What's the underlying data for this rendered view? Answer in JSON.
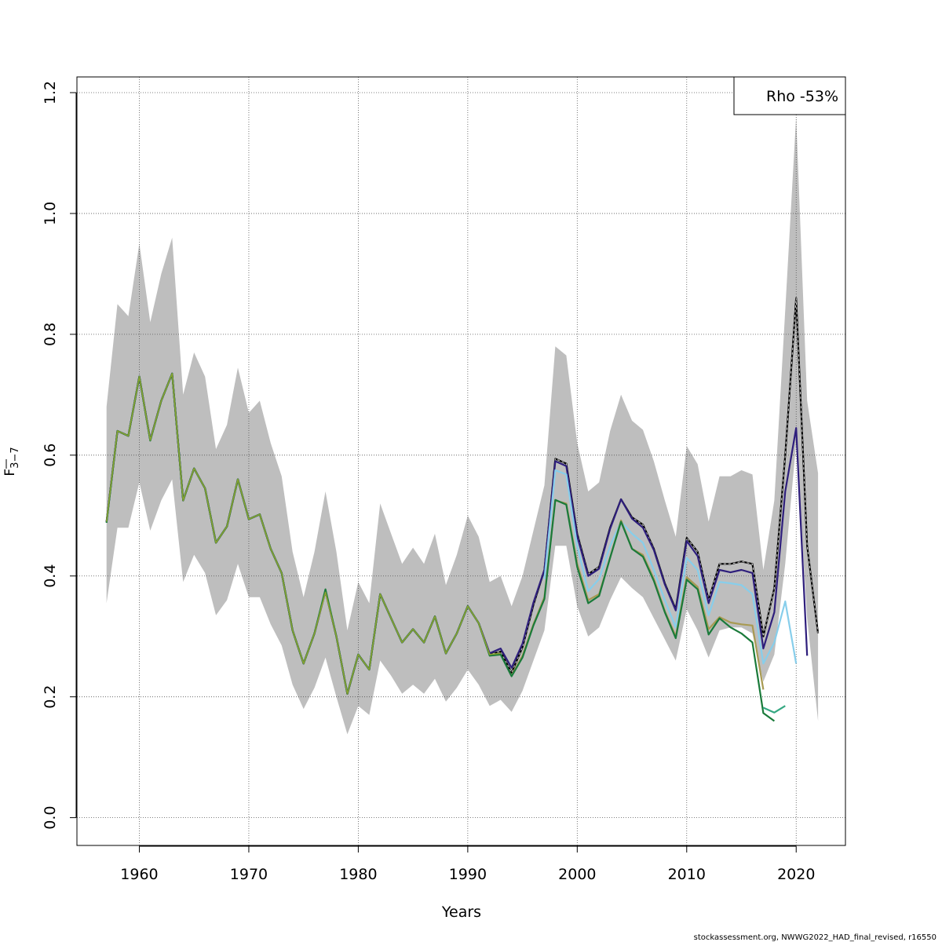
{
  "footer": "stockassessment.org, NWWG2022_HAD_final_revised, r16550",
  "legend": {
    "text": "Rho -53%"
  },
  "colors": {
    "band": "#bebebe",
    "grid": "#555555",
    "main": "#000000",
    "peel1": "#2e1e7c",
    "peel2": "#87ceeb",
    "peel3": "#a89a52",
    "peel4": "#1a7a3a",
    "peel5": "#35a882",
    "olive_overlay": "#8aa332"
  },
  "chart_data": {
    "type": "line",
    "xlabel": "Years",
    "ylabel": "F̅ 3−7",
    "ylabel_main": "F",
    "ylabel_sub": "3−7",
    "xlim": [
      1954.3,
      2024.5
    ],
    "ylim": [
      -0.046,
      1.226
    ],
    "xticks": [
      1960,
      1970,
      1980,
      1990,
      2000,
      2010,
      2020
    ],
    "yticks": [
      0.0,
      0.2,
      0.4,
      0.6,
      0.8,
      1.0,
      1.2
    ],
    "ytick_labels": [
      "0.0",
      "0.2",
      "0.4",
      "0.6",
      "0.8",
      "1.0",
      "1.2"
    ],
    "grid": true,
    "legend_position": "top-right",
    "confidence_band": {
      "x": [
        1957,
        1958,
        1959,
        1960,
        1961,
        1962,
        1963,
        1964,
        1965,
        1966,
        1967,
        1968,
        1969,
        1970,
        1971,
        1972,
        1973,
        1974,
        1975,
        1976,
        1977,
        1978,
        1979,
        1980,
        1981,
        1982,
        1983,
        1984,
        1985,
        1986,
        1987,
        1988,
        1989,
        1990,
        1991,
        1992,
        1993,
        1994,
        1995,
        1996,
        1997,
        1998,
        1999,
        2000,
        2001,
        2002,
        2003,
        2004,
        2005,
        2006,
        2007,
        2008,
        2009,
        2010,
        2011,
        2012,
        2013,
        2014,
        2015,
        2016,
        2017,
        2018,
        2019,
        2020,
        2021,
        2022
      ],
      "upper": [
        0.68,
        0.85,
        0.83,
        0.95,
        0.82,
        0.9,
        0.96,
        0.7,
        0.77,
        0.73,
        0.61,
        0.65,
        0.745,
        0.67,
        0.69,
        0.62,
        0.565,
        0.44,
        0.365,
        0.44,
        0.54,
        0.44,
        0.31,
        0.39,
        0.355,
        0.52,
        0.47,
        0.42,
        0.447,
        0.42,
        0.47,
        0.385,
        0.435,
        0.5,
        0.465,
        0.39,
        0.4,
        0.35,
        0.4,
        0.475,
        0.55,
        0.78,
        0.765,
        0.62,
        0.54,
        0.555,
        0.64,
        0.7,
        0.657,
        0.642,
        0.59,
        0.525,
        0.465,
        0.615,
        0.585,
        0.49,
        0.565,
        0.565,
        0.575,
        0.568,
        0.41,
        0.525,
        0.84,
        1.16,
        0.69,
        0.57
      ],
      "lower": [
        0.355,
        0.48,
        0.48,
        0.555,
        0.475,
        0.525,
        0.56,
        0.39,
        0.435,
        0.405,
        0.335,
        0.36,
        0.42,
        0.365,
        0.365,
        0.32,
        0.285,
        0.22,
        0.18,
        0.215,
        0.265,
        0.2,
        0.138,
        0.185,
        0.17,
        0.26,
        0.235,
        0.205,
        0.22,
        0.205,
        0.23,
        0.192,
        0.215,
        0.245,
        0.22,
        0.185,
        0.195,
        0.175,
        0.21,
        0.26,
        0.31,
        0.45,
        0.45,
        0.35,
        0.3,
        0.315,
        0.36,
        0.398,
        0.38,
        0.365,
        0.33,
        0.295,
        0.26,
        0.345,
        0.31,
        0.265,
        0.31,
        0.315,
        0.315,
        0.305,
        0.225,
        0.27,
        0.42,
        0.62,
        0.33,
        0.16
      ]
    },
    "series": [
      {
        "color_key": "main",
        "dashed": true,
        "x": [
          1957,
          1958,
          1959,
          1960,
          1961,
          1962,
          1963,
          1964,
          1965,
          1966,
          1967,
          1968,
          1969,
          1970,
          1971,
          1972,
          1973,
          1974,
          1975,
          1976,
          1977,
          1978,
          1979,
          1980,
          1981,
          1982,
          1983,
          1984,
          1985,
          1986,
          1987,
          1988,
          1989,
          1990,
          1991,
          1992,
          1993,
          1994,
          1995,
          1996,
          1997,
          1998,
          1999,
          2000,
          2001,
          2002,
          2003,
          2004,
          2005,
          2006,
          2007,
          2008,
          2009,
          2010,
          2011,
          2012,
          2013,
          2014,
          2015,
          2016,
          2017,
          2018,
          2019,
          2020,
          2021,
          2022
        ],
        "values": [
          0.49,
          0.64,
          0.632,
          0.73,
          0.625,
          0.69,
          0.735,
          0.525,
          0.578,
          0.545,
          0.455,
          0.482,
          0.56,
          0.494,
          0.502,
          0.445,
          0.405,
          0.31,
          0.255,
          0.305,
          0.375,
          0.3,
          0.205,
          0.27,
          0.245,
          0.37,
          0.33,
          0.29,
          0.312,
          0.29,
          0.333,
          0.272,
          0.305,
          0.35,
          0.322,
          0.27,
          0.275,
          0.24,
          0.282,
          0.352,
          0.41,
          0.594,
          0.586,
          0.47,
          0.403,
          0.415,
          0.48,
          0.527,
          0.497,
          0.485,
          0.445,
          0.388,
          0.345,
          0.463,
          0.44,
          0.36,
          0.42,
          0.42,
          0.424,
          0.42,
          0.3,
          0.38,
          0.6,
          0.86,
          0.45,
          0.305
        ]
      },
      {
        "color_key": "peel1",
        "dashed": false,
        "x": [
          1957,
          1958,
          1959,
          1960,
          1961,
          1962,
          1963,
          1964,
          1965,
          1966,
          1967,
          1968,
          1969,
          1970,
          1971,
          1972,
          1973,
          1974,
          1975,
          1976,
          1977,
          1978,
          1979,
          1980,
          1981,
          1982,
          1983,
          1984,
          1985,
          1986,
          1987,
          1988,
          1989,
          1990,
          1991,
          1992,
          1993,
          1994,
          1995,
          1996,
          1997,
          1998,
          1999,
          2000,
          2001,
          2002,
          2003,
          2004,
          2005,
          2006,
          2007,
          2008,
          2009,
          2010,
          2011,
          2012,
          2013,
          2014,
          2015,
          2016,
          2017,
          2018,
          2019,
          2020,
          2021
        ],
        "values": [
          0.489,
          0.64,
          0.632,
          0.73,
          0.625,
          0.69,
          0.735,
          0.525,
          0.578,
          0.545,
          0.455,
          0.482,
          0.56,
          0.494,
          0.502,
          0.445,
          0.405,
          0.31,
          0.255,
          0.305,
          0.375,
          0.3,
          0.205,
          0.27,
          0.245,
          0.37,
          0.33,
          0.29,
          0.312,
          0.29,
          0.333,
          0.272,
          0.305,
          0.35,
          0.322,
          0.272,
          0.28,
          0.248,
          0.288,
          0.356,
          0.41,
          0.59,
          0.582,
          0.466,
          0.4,
          0.412,
          0.478,
          0.527,
          0.495,
          0.48,
          0.443,
          0.386,
          0.343,
          0.458,
          0.433,
          0.355,
          0.41,
          0.406,
          0.41,
          0.405,
          0.28,
          0.34,
          0.54,
          0.645,
          0.268
        ]
      },
      {
        "color_key": "peel2",
        "dashed": false,
        "x": [
          1997,
          1998,
          1999,
          2000,
          2001,
          2002,
          2003,
          2004,
          2005,
          2006,
          2007,
          2008,
          2009,
          2010,
          2011,
          2012,
          2013,
          2014,
          2015,
          2016,
          2017,
          2018,
          2019,
          2020
        ],
        "values": [
          0.395,
          0.575,
          0.568,
          0.45,
          0.375,
          0.395,
          0.45,
          0.49,
          0.47,
          0.455,
          0.41,
          0.36,
          0.315,
          0.43,
          0.41,
          0.335,
          0.39,
          0.388,
          0.385,
          0.37,
          0.255,
          0.29,
          0.358,
          0.255
        ]
      },
      {
        "color_key": "peel3",
        "dashed": false,
        "x": [
          1994,
          1995,
          1996,
          1997,
          1998,
          1999,
          2000,
          2001,
          2002,
          2003,
          2004,
          2005,
          2006,
          2007,
          2008,
          2009,
          2010,
          2011,
          2012,
          2013,
          2014,
          2015,
          2016,
          2017
        ],
        "values": [
          0.235,
          0.268,
          0.32,
          0.365,
          0.525,
          0.52,
          0.42,
          0.36,
          0.37,
          0.43,
          0.492,
          0.445,
          0.435,
          0.395,
          0.342,
          0.3,
          0.398,
          0.382,
          0.312,
          0.332,
          0.323,
          0.32,
          0.318,
          0.212
        ]
      },
      {
        "color_key": "peel4",
        "dashed": false,
        "x": [
          1957,
          1958,
          1959,
          1960,
          1961,
          1962,
          1963,
          1964,
          1965,
          1966,
          1967,
          1968,
          1969,
          1970,
          1971,
          1972,
          1973,
          1974,
          1975,
          1976,
          1977,
          1978,
          1979,
          1980,
          1981,
          1982,
          1983,
          1984,
          1985,
          1986,
          1987,
          1988,
          1989,
          1990,
          1991,
          1992,
          1993,
          1994,
          1995,
          1996,
          1997,
          1998,
          1999,
          2000,
          2001,
          2002,
          2003,
          2004,
          2005,
          2006,
          2007,
          2008,
          2009,
          2010,
          2011,
          2012,
          2013,
          2014,
          2015,
          2016,
          2017,
          2018
        ],
        "values": [
          0.488,
          0.64,
          0.632,
          0.73,
          0.624,
          0.69,
          0.735,
          0.525,
          0.578,
          0.545,
          0.455,
          0.482,
          0.56,
          0.494,
          0.502,
          0.445,
          0.405,
          0.31,
          0.255,
          0.305,
          0.378,
          0.3,
          0.205,
          0.27,
          0.245,
          0.37,
          0.33,
          0.29,
          0.312,
          0.29,
          0.333,
          0.272,
          0.305,
          0.35,
          0.322,
          0.268,
          0.27,
          0.234,
          0.265,
          0.318,
          0.362,
          0.526,
          0.518,
          0.415,
          0.355,
          0.367,
          0.43,
          0.49,
          0.445,
          0.432,
          0.392,
          0.34,
          0.297,
          0.394,
          0.378,
          0.303,
          0.33,
          0.315,
          0.305,
          0.29,
          0.173,
          0.16
        ]
      },
      {
        "color_key": "peel5",
        "dashed": false,
        "x": [
          2017,
          2018,
          2019
        ],
        "values": [
          0.182,
          0.174,
          0.185
        ]
      },
      {
        "color_key": "olive_overlay",
        "dashed": false,
        "x": [
          1957,
          1958,
          1959,
          1960,
          1961,
          1962,
          1963,
          1964,
          1965,
          1966,
          1967,
          1968,
          1969,
          1970,
          1971,
          1972,
          1973,
          1974,
          1975,
          1976,
          1977,
          1978,
          1979,
          1980,
          1981,
          1982,
          1983,
          1984,
          1985,
          1986,
          1987,
          1988,
          1989,
          1990,
          1991,
          1992,
          1993
        ],
        "values": [
          0.49,
          0.64,
          0.632,
          0.73,
          0.625,
          0.69,
          0.735,
          0.525,
          0.578,
          0.545,
          0.455,
          0.482,
          0.56,
          0.494,
          0.502,
          0.445,
          0.405,
          0.31,
          0.255,
          0.305,
          0.373,
          0.3,
          0.205,
          0.27,
          0.245,
          0.37,
          0.33,
          0.29,
          0.312,
          0.29,
          0.333,
          0.272,
          0.305,
          0.35,
          0.322,
          0.27,
          0.272
        ]
      }
    ]
  }
}
